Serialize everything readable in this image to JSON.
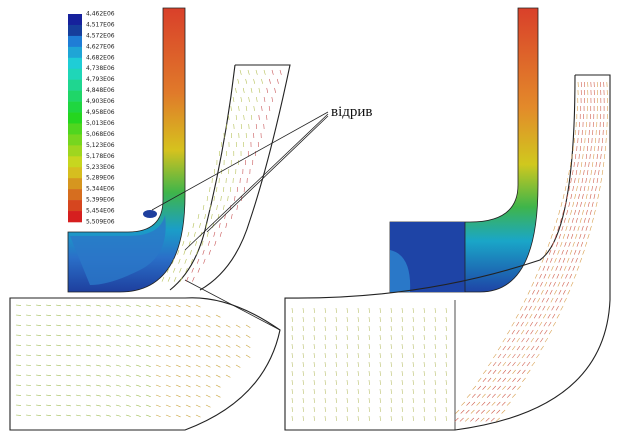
{
  "legend": {
    "labels": [
      "4,462E06",
      "4,517E06",
      "4,572E06",
      "4,627E06",
      "4,682E06",
      "4,738E06",
      "4,793E06",
      "4,848E06",
      "4,903E06",
      "4,958E06",
      "5,013E06",
      "5,068E06",
      "5,123E06",
      "5,178E06",
      "5,233E06",
      "5,289E06",
      "5,344E06",
      "5,399E06",
      "5,454E06",
      "5,509E06"
    ]
  },
  "annotation": "відрив"
}
